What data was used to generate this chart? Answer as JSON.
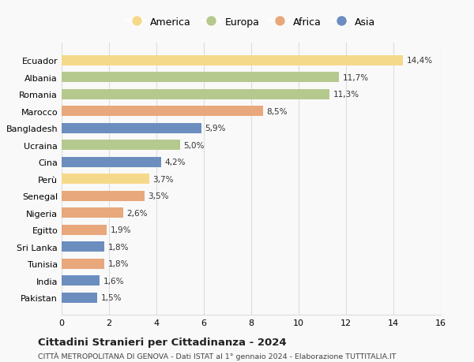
{
  "countries": [
    "Pakistan",
    "India",
    "Tunisia",
    "Sri Lanka",
    "Egitto",
    "Nigeria",
    "Senegal",
    "Perù",
    "Cina",
    "Ucraina",
    "Bangladesh",
    "Marocco",
    "Romania",
    "Albania",
    "Ecuador"
  ],
  "values": [
    1.5,
    1.6,
    1.8,
    1.8,
    1.9,
    2.6,
    3.5,
    3.7,
    4.2,
    5.0,
    5.9,
    8.5,
    11.3,
    11.7,
    14.4
  ],
  "labels": [
    "1,5%",
    "1,6%",
    "1,8%",
    "1,8%",
    "1,9%",
    "2,6%",
    "3,5%",
    "3,7%",
    "4,2%",
    "5,0%",
    "5,9%",
    "8,5%",
    "11,3%",
    "11,7%",
    "14,4%"
  ],
  "colors": [
    "#6c8ebf",
    "#6c8ebf",
    "#e8a87c",
    "#6c8ebf",
    "#e8a87c",
    "#e8a87c",
    "#e8a87c",
    "#f5d98b",
    "#6c8ebf",
    "#b5c98e",
    "#6c8ebf",
    "#e8a87c",
    "#b5c98e",
    "#b5c98e",
    "#f5d98b"
  ],
  "legend_names": [
    "America",
    "Europa",
    "Africa",
    "Asia"
  ],
  "legend_colors": [
    "#f5d98b",
    "#b5c98e",
    "#e8a87c",
    "#6c8ebf"
  ],
  "title1": "Cittadini Stranieri per Cittadinanza - 2024",
  "title2": "CITTÀ METROPOLITANA DI GENOVA - Dati ISTAT al 1° gennaio 2024 - Elaborazione TUTTITALIA.IT",
  "xlim": [
    0,
    16
  ],
  "xticks": [
    0,
    2,
    4,
    6,
    8,
    10,
    12,
    14,
    16
  ],
  "background_color": "#f9f9f9",
  "grid_color": "#dddddd"
}
